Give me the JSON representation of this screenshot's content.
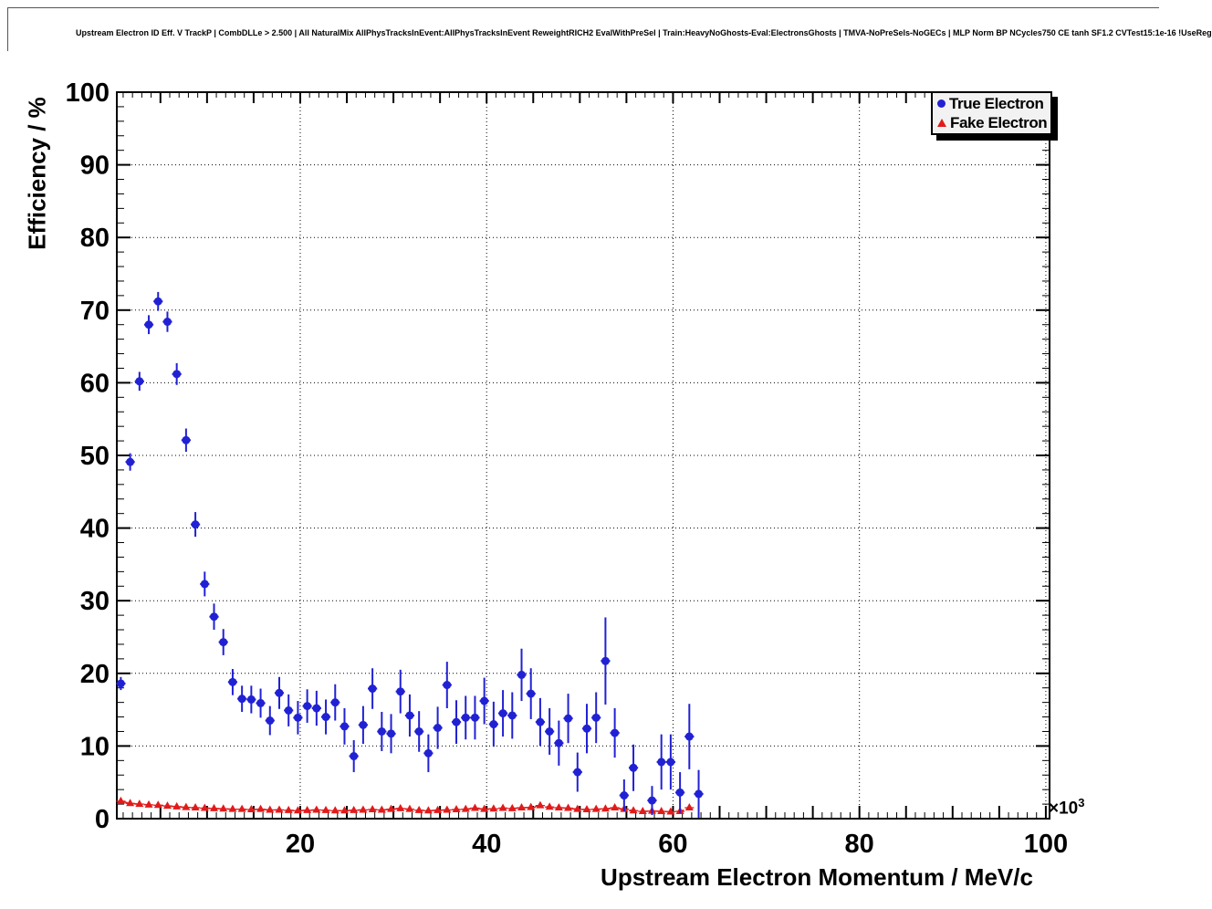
{
  "title": "Upstream Electron ID Eff. V TrackP | CombDLLe > 2.500 | All NaturalMix AllPhysTracksInEvent:AllPhysTracksInEvent ReweightRICH2 EvalWithPreSel | Train:HeavyNoGhosts-Eval:ElectronsGhosts | TMVA-NoPreSels-NoGECs | MLP Norm BP NCycles750 CE tanh SF1.2 CVTest15:1e-16 !UseReg",
  "legend": {
    "items": [
      {
        "label": "True Electron",
        "marker": "circle",
        "color": "#2121d4"
      },
      {
        "label": "Fake Electron",
        "marker": "triangle",
        "color": "#e21a1a"
      }
    ]
  },
  "chart_data": {
    "type": "scatter",
    "title": "Upstream Electron ID Eff. V TrackP | CombDLLe > 2.500 | All NaturalMix AllPhysTracksInEvent:AllPhysTracksInEvent ReweightRICH2 EvalWithPreSel | Train:HeavyNoGhosts-Eval:ElectronsGhosts | TMVA-NoPreSels-NoGECs | MLP Norm BP NCycles750 CE tanh SF1.2 CVTest15:1e-16 !UseReg",
    "xlabel": "Upstream Electron Momentum / MeV/c",
    "ylabel": "Efficiency / %",
    "x_axis_multiplier": {
      "base": "×10",
      "exp": "3"
    },
    "xlim": [
      0.32,
      100.4
    ],
    "ylim": [
      0,
      100
    ],
    "grid": true,
    "legend_position": "top-right",
    "xticks": {
      "values": [
        20,
        40,
        60,
        80,
        100
      ],
      "labels": [
        "20",
        "40",
        "60",
        "80",
        "100"
      ]
    },
    "yticks": {
      "values": [
        0,
        10,
        20,
        30,
        40,
        50,
        60,
        70,
        80,
        90,
        100
      ],
      "labels": [
        "0",
        "10",
        "20",
        "30",
        "40",
        "50",
        "60",
        "70",
        "80",
        "90",
        "100"
      ]
    },
    "x_major_step": 5,
    "x_minor_step": 1,
    "y_major_step": 10,
    "y_minor_step": 2,
    "x_bin_halfwidth": 0.5,
    "series": [
      {
        "name": "True Electron",
        "marker": "circle",
        "color": "#2121d4",
        "points": [
          [
            0.75,
            18.6,
            0.9
          ],
          [
            1.75,
            49.1,
            1.2
          ],
          [
            2.75,
            60.2,
            1.3
          ],
          [
            3.75,
            68.0,
            1.3
          ],
          [
            4.75,
            71.2,
            1.3
          ],
          [
            5.75,
            68.4,
            1.4
          ],
          [
            6.75,
            61.2,
            1.5
          ],
          [
            7.75,
            52.1,
            1.6
          ],
          [
            8.75,
            40.5,
            1.7
          ],
          [
            9.75,
            32.3,
            1.7
          ],
          [
            10.75,
            27.8,
            1.8
          ],
          [
            11.75,
            24.3,
            1.8
          ],
          [
            12.75,
            18.8,
            1.8
          ],
          [
            13.75,
            16.5,
            1.8
          ],
          [
            14.75,
            16.4,
            1.9
          ],
          [
            15.75,
            15.9,
            2.0
          ],
          [
            16.75,
            13.5,
            2.0
          ],
          [
            17.75,
            17.3,
            2.2
          ],
          [
            18.75,
            14.9,
            2.2
          ],
          [
            19.75,
            13.9,
            2.3
          ],
          [
            20.75,
            15.5,
            2.3
          ],
          [
            21.75,
            15.2,
            2.4
          ],
          [
            22.75,
            14.0,
            2.4
          ],
          [
            23.75,
            16.0,
            2.5
          ],
          [
            24.75,
            12.7,
            2.5
          ],
          [
            25.75,
            8.6,
            2.2
          ],
          [
            26.75,
            12.9,
            2.6
          ],
          [
            27.75,
            17.9,
            2.8
          ],
          [
            28.75,
            12.0,
            2.7
          ],
          [
            29.75,
            11.7,
            2.7
          ],
          [
            30.75,
            17.5,
            3.0
          ],
          [
            31.75,
            14.2,
            2.9
          ],
          [
            32.75,
            12.0,
            2.8
          ],
          [
            33.75,
            9.0,
            2.6
          ],
          [
            34.75,
            12.5,
            2.9
          ],
          [
            35.75,
            18.4,
            3.2
          ],
          [
            36.75,
            13.3,
            3.0
          ],
          [
            37.75,
            13.9,
            3.0
          ],
          [
            38.75,
            13.9,
            3.0
          ],
          [
            39.75,
            16.2,
            3.2
          ],
          [
            40.75,
            13.0,
            3.1
          ],
          [
            41.75,
            14.5,
            3.2
          ],
          [
            42.75,
            14.2,
            3.2
          ],
          [
            43.75,
            19.8,
            3.6
          ],
          [
            44.75,
            17.2,
            3.5
          ],
          [
            45.75,
            13.3,
            3.3
          ],
          [
            46.75,
            12.0,
            3.2
          ],
          [
            47.75,
            10.4,
            3.1
          ],
          [
            48.75,
            13.8,
            3.4
          ],
          [
            49.75,
            6.4,
            2.7
          ],
          [
            50.75,
            12.4,
            3.4
          ],
          [
            51.75,
            13.9,
            3.5
          ],
          [
            52.75,
            21.7,
            6.0
          ],
          [
            53.75,
            11.8,
            3.4
          ],
          [
            54.75,
            3.2,
            2.2
          ],
          [
            55.75,
            7.0,
            3.2
          ],
          [
            57.75,
            2.5,
            2.0
          ],
          [
            58.75,
            7.8,
            3.8
          ],
          [
            59.75,
            7.8,
            3.8
          ],
          [
            60.75,
            3.6,
            2.8
          ],
          [
            61.75,
            11.3,
            4.5
          ],
          [
            62.75,
            3.4,
            3.3
          ]
        ]
      },
      {
        "name": "Fake Electron",
        "marker": "triangle",
        "color": "#e21a1a",
        "line": "dashed",
        "yerr": 0.15,
        "points": [
          [
            0.75,
            2.4
          ],
          [
            1.75,
            2.1
          ],
          [
            2.75,
            2.0
          ],
          [
            3.75,
            1.9
          ],
          [
            4.75,
            1.85
          ],
          [
            5.75,
            1.75
          ],
          [
            6.75,
            1.65
          ],
          [
            7.75,
            1.55
          ],
          [
            8.75,
            1.5
          ],
          [
            9.75,
            1.45
          ],
          [
            10.75,
            1.4
          ],
          [
            11.75,
            1.35
          ],
          [
            12.75,
            1.3
          ],
          [
            13.75,
            1.3
          ],
          [
            14.75,
            1.25
          ],
          [
            15.75,
            1.3
          ],
          [
            16.75,
            1.2
          ],
          [
            17.75,
            1.2
          ],
          [
            18.75,
            1.15
          ],
          [
            19.75,
            1.1
          ],
          [
            20.75,
            1.15
          ],
          [
            21.75,
            1.2
          ],
          [
            22.75,
            1.15
          ],
          [
            23.75,
            1.1
          ],
          [
            24.75,
            1.1
          ],
          [
            25.75,
            1.15
          ],
          [
            26.75,
            1.2
          ],
          [
            27.75,
            1.25
          ],
          [
            28.75,
            1.2
          ],
          [
            29.75,
            1.3
          ],
          [
            30.75,
            1.4
          ],
          [
            31.75,
            1.3
          ],
          [
            32.75,
            1.15
          ],
          [
            33.75,
            1.1
          ],
          [
            34.75,
            1.15
          ],
          [
            35.75,
            1.2
          ],
          [
            36.75,
            1.25
          ],
          [
            37.75,
            1.3
          ],
          [
            38.75,
            1.45
          ],
          [
            39.75,
            1.3
          ],
          [
            40.75,
            1.35
          ],
          [
            41.75,
            1.45
          ],
          [
            42.75,
            1.4
          ],
          [
            43.75,
            1.5
          ],
          [
            44.75,
            1.55
          ],
          [
            45.75,
            1.8
          ],
          [
            46.75,
            1.6
          ],
          [
            47.75,
            1.5
          ],
          [
            48.75,
            1.45
          ],
          [
            49.75,
            1.3
          ],
          [
            50.75,
            1.25
          ],
          [
            51.75,
            1.3
          ],
          [
            52.75,
            1.35
          ],
          [
            53.75,
            1.5
          ],
          [
            54.75,
            1.3
          ],
          [
            55.75,
            1.1
          ],
          [
            56.75,
            1.0
          ],
          [
            57.75,
            1.05
          ],
          [
            58.75,
            1.0
          ],
          [
            59.75,
            0.95
          ],
          [
            60.75,
            1.0
          ],
          [
            61.75,
            1.5
          ]
        ]
      }
    ]
  }
}
